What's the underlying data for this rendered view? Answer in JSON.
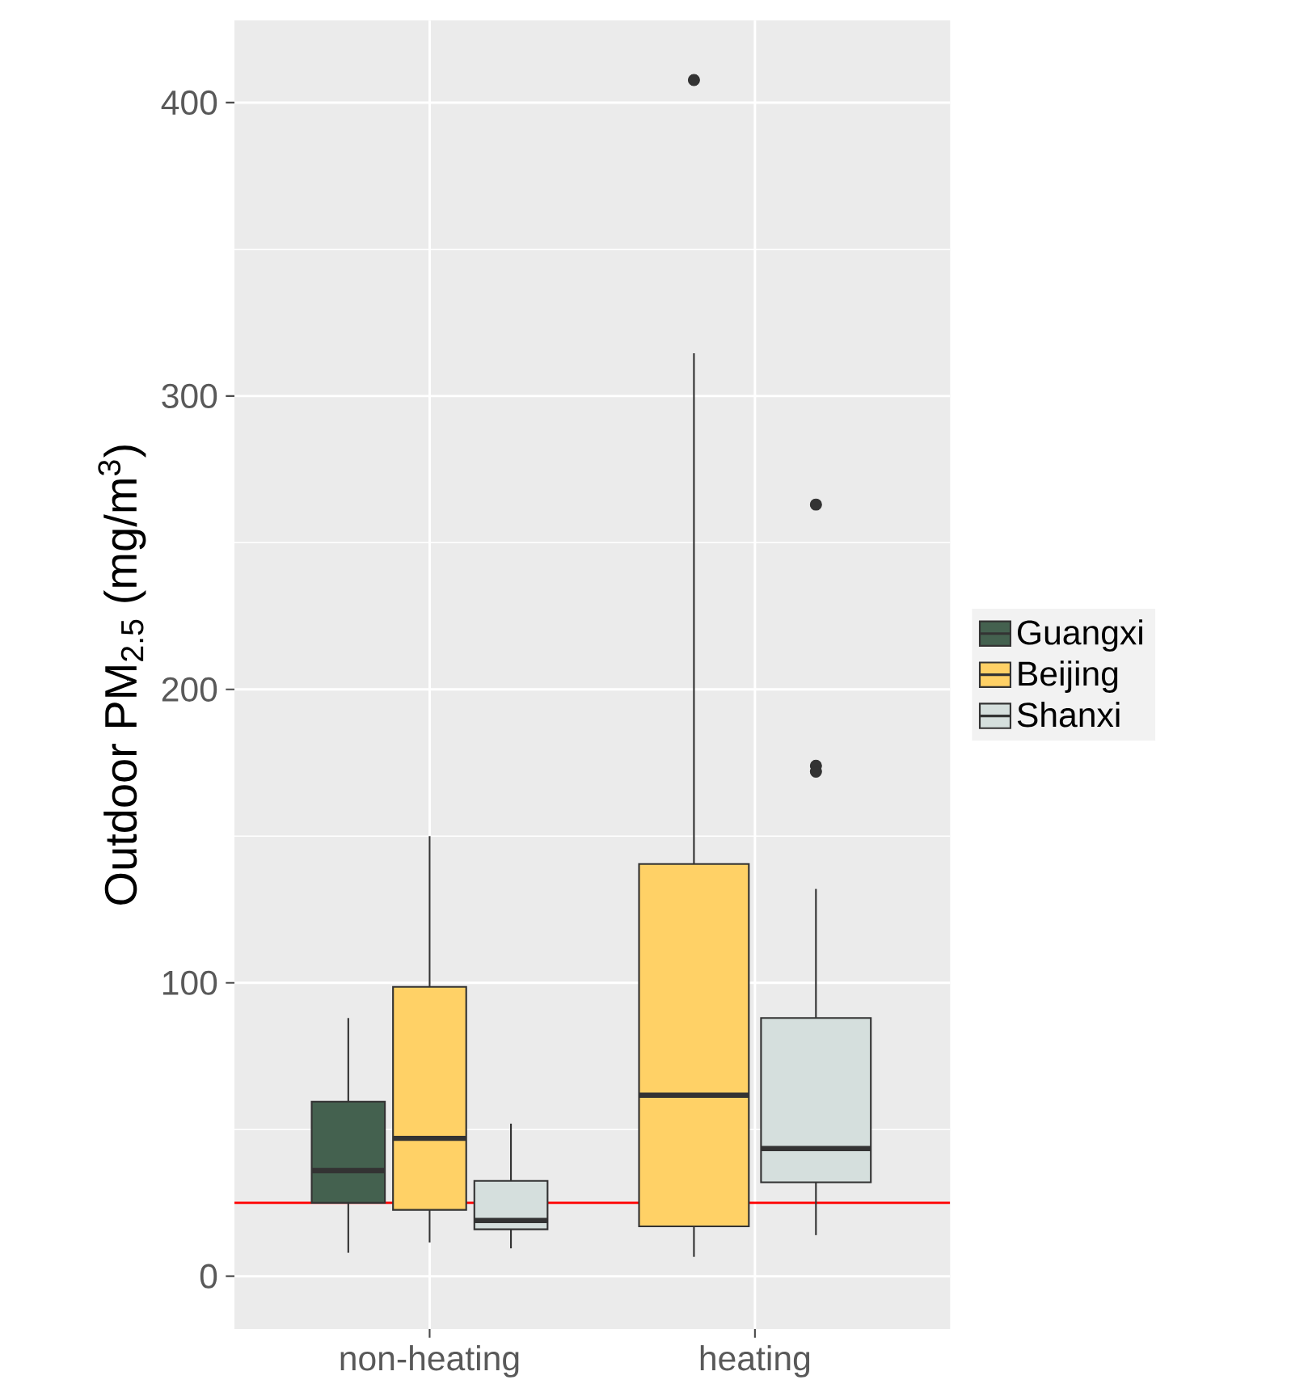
{
  "chart_data": {
    "type": "box",
    "ylabel": "Outdoor PM$_{2.5}$ (mg/m$^{3}$)",
    "categories": [
      "non-heating",
      "heating"
    ],
    "series": [
      {
        "name": "Guangxi",
        "color": "#44614f",
        "boxes": [
          {
            "low": 8,
            "q1": 25,
            "median": 36,
            "q3": 59.5,
            "high": 88
          },
          null
        ]
      },
      {
        "name": "Beijing",
        "color": "#ffd166",
        "boxes": [
          {
            "low": 11.5,
            "q1": 22.6,
            "median": 47,
            "q3": 98.6,
            "high": 150
          },
          {
            "low": 6.6,
            "q1": 17,
            "median": 61.7,
            "q3": 140.5,
            "high": 314.6,
            "outliers": [
              407.7
            ]
          }
        ]
      },
      {
        "name": "Shanxi",
        "color": "#d5dfdd",
        "boxes": [
          {
            "low": 9.5,
            "q1": 16,
            "median": 19,
            "q3": 32.5,
            "high": 52
          },
          {
            "low": 14,
            "q1": 32,
            "median": 43.5,
            "q3": 88,
            "high": 132,
            "outliers": [
              263,
              174,
              172
            ]
          }
        ]
      }
    ],
    "ylim": [
      -18,
      428
    ],
    "yticks": [
      0,
      100,
      200,
      300,
      400
    ],
    "grid": true,
    "legend": "right",
    "ref_lines": [
      {
        "axis": "y",
        "value": 25,
        "color": "#ff0000"
      }
    ]
  }
}
